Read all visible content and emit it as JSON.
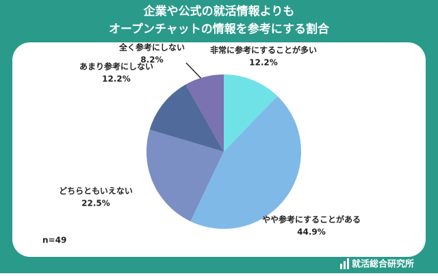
{
  "chart_data": {
    "type": "pie",
    "title": [
      "企業や公式の就活情報よりも",
      "オープンチャットの情報を参考にする割合"
    ],
    "categories": [
      "非常に参考にすることが多い",
      "やや参考にすることがある",
      "どちらともいえない",
      "あまり参考にしない",
      "全く参考にしない"
    ],
    "values": [
      12.2,
      44.9,
      22.5,
      12.2,
      8.2
    ],
    "value_labels": [
      "12.2%",
      "44.9%",
      "22.5%",
      "12.2%",
      "8.2%"
    ],
    "colors": [
      "#6fe2e8",
      "#7fb9e7",
      "#7b8fc4",
      "#506b9b",
      "#7a72b1"
    ],
    "annotation": "n=49",
    "source": "就活総合研究所"
  }
}
